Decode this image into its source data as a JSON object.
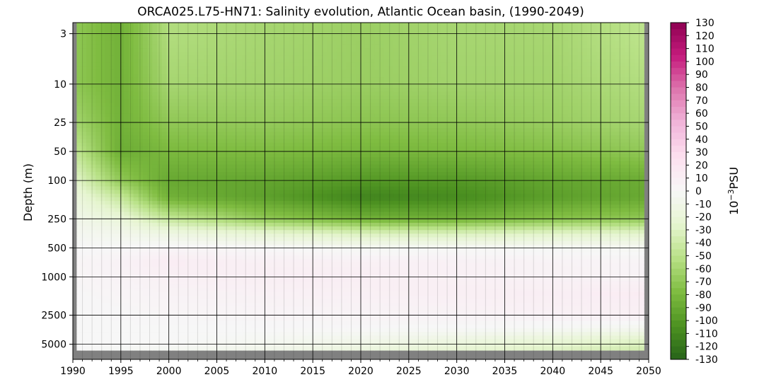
{
  "chart_data": {
    "type": "heatmap",
    "title": "ORCA025.L75-HN71: Salinity evolution, Atlantic Ocean basin, (1990-2049)",
    "xlabel": "",
    "ylabel": "Depth (m)",
    "xlim": [
      1990,
      2050
    ],
    "x_ticks": [
      "1990",
      "1995",
      "2000",
      "2005",
      "2010",
      "2015",
      "2020",
      "2025",
      "2030",
      "2035",
      "2040",
      "2045",
      "2050"
    ],
    "y_scale": "log (depth, increasing downward)",
    "y_ticks": [
      "3",
      "10",
      "25",
      "50",
      "100",
      "250",
      "500",
      "1000",
      "2500",
      "5000"
    ],
    "y_tick_values": [
      3,
      10,
      25,
      50,
      100,
      250,
      500,
      1000,
      2500,
      5000
    ],
    "grid": true,
    "colormap": "PiYG (green negative, pink positive)",
    "colorbar": {
      "label": "10⁻³PSU",
      "label_base": "10",
      "label_exp": "−3",
      "label_unit": "PSU",
      "range": [
        -130,
        130
      ],
      "ticks": [
        "130",
        "120",
        "110",
        "100",
        "90",
        "80",
        "70",
        "60",
        "50",
        "40",
        "30",
        "20",
        "10",
        "0",
        "-10",
        "-20",
        "-30",
        "-40",
        "-50",
        "-60",
        "-70",
        "-80",
        "-90",
        "-100",
        "-110",
        "-120",
        "-130"
      ]
    },
    "field_rows": [
      {
        "depth": 3,
        "values_by_year": {
          "1990": -70,
          "1995": -85,
          "2000": -55,
          "2010": -60,
          "2020": -65,
          "2030": -60,
          "2040": -60,
          "2049": -50
        }
      },
      {
        "depth": 10,
        "values_by_year": {
          "1990": -70,
          "1995": -85,
          "2000": -60,
          "2010": -62,
          "2020": -66,
          "2030": -62,
          "2040": -62,
          "2049": -55
        }
      },
      {
        "depth": 25,
        "values_by_year": {
          "1990": -60,
          "1995": -85,
          "2000": -70,
          "2010": -68,
          "2020": -72,
          "2030": -70,
          "2040": -66,
          "2049": -60
        }
      },
      {
        "depth": 50,
        "values_by_year": {
          "1990": -45,
          "1995": -88,
          "2000": -80,
          "2010": -78,
          "2020": -82,
          "2030": -80,
          "2040": -76,
          "2049": -70
        }
      },
      {
        "depth": 100,
        "values_by_year": {
          "1990": -25,
          "1995": -70,
          "2000": -90,
          "2010": -92,
          "2020": -100,
          "2030": -100,
          "2040": -92,
          "2049": -88
        }
      },
      {
        "depth": 150,
        "values_by_year": {
          "1990": -15,
          "1995": -45,
          "2000": -85,
          "2010": -95,
          "2020": -112,
          "2030": -108,
          "2040": -96,
          "2049": -90
        }
      },
      {
        "depth": 250,
        "values_by_year": {
          "1990": -8,
          "1995": -20,
          "2000": -45,
          "2010": -70,
          "2020": -85,
          "2030": -85,
          "2040": -75,
          "2049": -70
        }
      },
      {
        "depth": 350,
        "values_by_year": {
          "1990": -4,
          "1995": -8,
          "2000": -15,
          "2010": -25,
          "2020": -35,
          "2030": -35,
          "2040": -30,
          "2049": -28
        }
      },
      {
        "depth": 500,
        "values_by_year": {
          "1990": 0,
          "1995": 0,
          "2000": 3,
          "2010": 0,
          "2020": -3,
          "2030": -2,
          "2040": -2,
          "2049": -3
        }
      },
      {
        "depth": 700,
        "values_by_year": {
          "1990": 2,
          "1995": 6,
          "2000": 12,
          "2010": 8,
          "2020": 8,
          "2030": 7,
          "2040": 5,
          "2049": 4
        }
      },
      {
        "depth": 1000,
        "values_by_year": {
          "1990": 2,
          "1995": 5,
          "2000": 8,
          "2010": 10,
          "2020": 10,
          "2030": 8,
          "2040": 6,
          "2049": 5
        }
      },
      {
        "depth": 1500,
        "values_by_year": {
          "1990": 1,
          "1995": 3,
          "2000": 5,
          "2010": 7,
          "2020": 8,
          "2030": 9,
          "2040": 10,
          "2049": 12
        }
      },
      {
        "depth": 2500,
        "values_by_year": {
          "1990": 0,
          "1995": 1,
          "2000": 2,
          "2010": 3,
          "2020": 4,
          "2030": 5,
          "2040": 7,
          "2049": 8
        }
      },
      {
        "depth": 3500,
        "values_by_year": {
          "1990": 0,
          "1995": 0,
          "2000": 0,
          "2010": 0,
          "2020": 0,
          "2030": -1,
          "2040": -3,
          "2049": -6
        }
      },
      {
        "depth": 4500,
        "values_by_year": {
          "1990": 0,
          "1995": 0,
          "2000": 0,
          "2010": -3,
          "2020": -8,
          "2030": -14,
          "2040": -20,
          "2049": -28
        }
      },
      {
        "depth": 6000,
        "values_by_year": {
          "1990": 0,
          "1995": -2,
          "2000": -4,
          "2010": -10,
          "2020": -18,
          "2030": -26,
          "2040": -32,
          "2049": -40
        }
      }
    ]
  }
}
